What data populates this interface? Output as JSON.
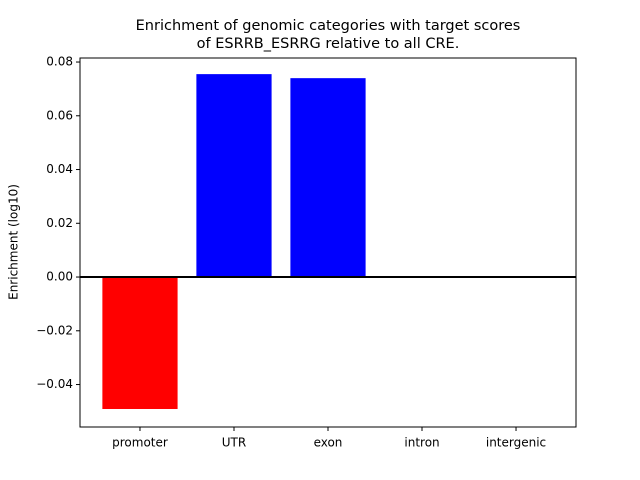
{
  "chart_data": {
    "type": "bar",
    "title": [
      "Enrichment of genomic categories with target scores",
      "of ESRRB_ESRRG relative to all CRE."
    ],
    "y_label": "Enrichment (log10)",
    "categories": [
      "promoter",
      "UTR",
      "exon",
      "intron",
      "intergenic"
    ],
    "values": [
      -0.0491,
      0.0755,
      0.074,
      0,
      0
    ],
    "colors": [
      "#ff0000",
      "#0000ff",
      "#0000ff",
      "#0000ff",
      "#0000ff"
    ],
    "ylim": [
      -0.0558,
      0.0815
    ],
    "yticks": [
      {
        "value": -0.04,
        "label": "−0.04"
      },
      {
        "value": -0.02,
        "label": "−0.02"
      },
      {
        "value": 0,
        "label": "0.00"
      },
      {
        "value": 0.02,
        "label": "0.02"
      },
      {
        "value": 0.04,
        "label": "0.04"
      },
      {
        "value": 0.06,
        "label": "0.06"
      },
      {
        "value": 0.08,
        "label": "0.08"
      }
    ]
  }
}
